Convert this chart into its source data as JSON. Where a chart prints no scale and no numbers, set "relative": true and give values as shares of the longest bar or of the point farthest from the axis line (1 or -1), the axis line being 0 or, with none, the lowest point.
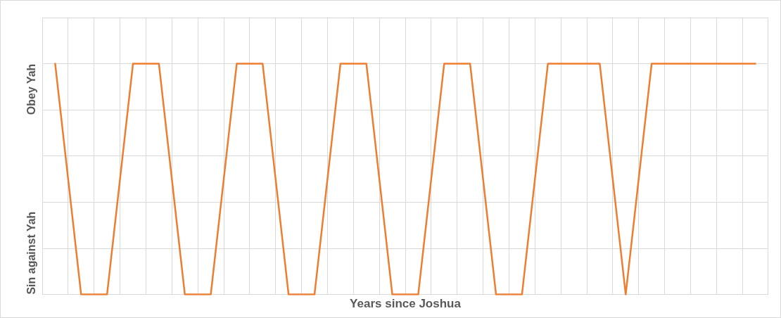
{
  "chart_data": {
    "type": "line",
    "xlabel": "Years since Joshua",
    "relative": true,
    "annotations": [
      "Sin against Yah",
      "Obey Yah"
    ],
    "categories": [
      null,
      null,
      null,
      null,
      null,
      null,
      null,
      null,
      null,
      null,
      null,
      null,
      null,
      null,
      null,
      null,
      null,
      null,
      null,
      null,
      null,
      null,
      null,
      null,
      null,
      null,
      null,
      null
    ],
    "series": [
      {
        "color": "#ed7d31",
        "values": [
          1,
          0,
          0,
          1,
          1,
          0,
          0,
          1,
          1,
          0,
          0,
          1,
          1,
          0,
          0,
          1,
          1,
          0,
          0,
          1,
          1,
          1,
          0,
          1,
          1,
          1,
          1,
          1
        ]
      }
    ],
    "grid": true,
    "legend": false,
    "marker": "none",
    "line_style": "solid"
  }
}
